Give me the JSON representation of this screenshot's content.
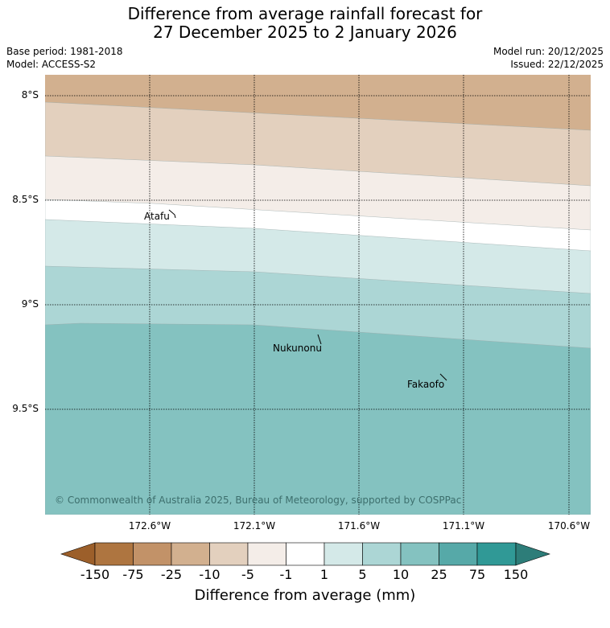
{
  "header": {
    "title_line1": "Difference from average rainfall forecast for",
    "title_line2": "27 December 2025 to 2 January 2026",
    "base_period": "Base period: 1981-2018",
    "model": "Model: ACCESS-S2",
    "model_run": "Model run: 20/12/2025",
    "issued": "Issued: 22/12/2025"
  },
  "map": {
    "lat_labels": [
      "8°S",
      "8.5°S",
      "9°S",
      "9.5°S"
    ],
    "lon_labels": [
      "172.6°W",
      "172.1°W",
      "171.6°W",
      "171.1°W",
      "170.6°W"
    ],
    "places": [
      {
        "name": "Atafu"
      },
      {
        "name": "Nukunonu"
      },
      {
        "name": "Fakaofo"
      }
    ],
    "copyright": "© Commonwealth of Australia 2025, Bureau of Meteorology, supported by COSPPac",
    "band_colors": [
      "#d2b08f",
      "#e3d0be",
      "#f4ede8",
      "#ffffff",
      "#d4e9e8",
      "#acd6d5",
      "#84c2c0"
    ]
  },
  "colorbar": {
    "title": "Difference from average (mm)",
    "ticks": [
      "-150",
      "-75",
      "-25",
      "-10",
      "-5",
      "-1",
      "1",
      "5",
      "10",
      "25",
      "75",
      "150"
    ],
    "colors": [
      "#9c5f2a",
      "#ae7540",
      "#c29268",
      "#d2b08f",
      "#e3d0be",
      "#f4ede8",
      "#ffffff",
      "#d4e9e8",
      "#acd6d5",
      "#84c2c0",
      "#56a9a8",
      "#309996",
      "#2d7d79"
    ]
  }
}
